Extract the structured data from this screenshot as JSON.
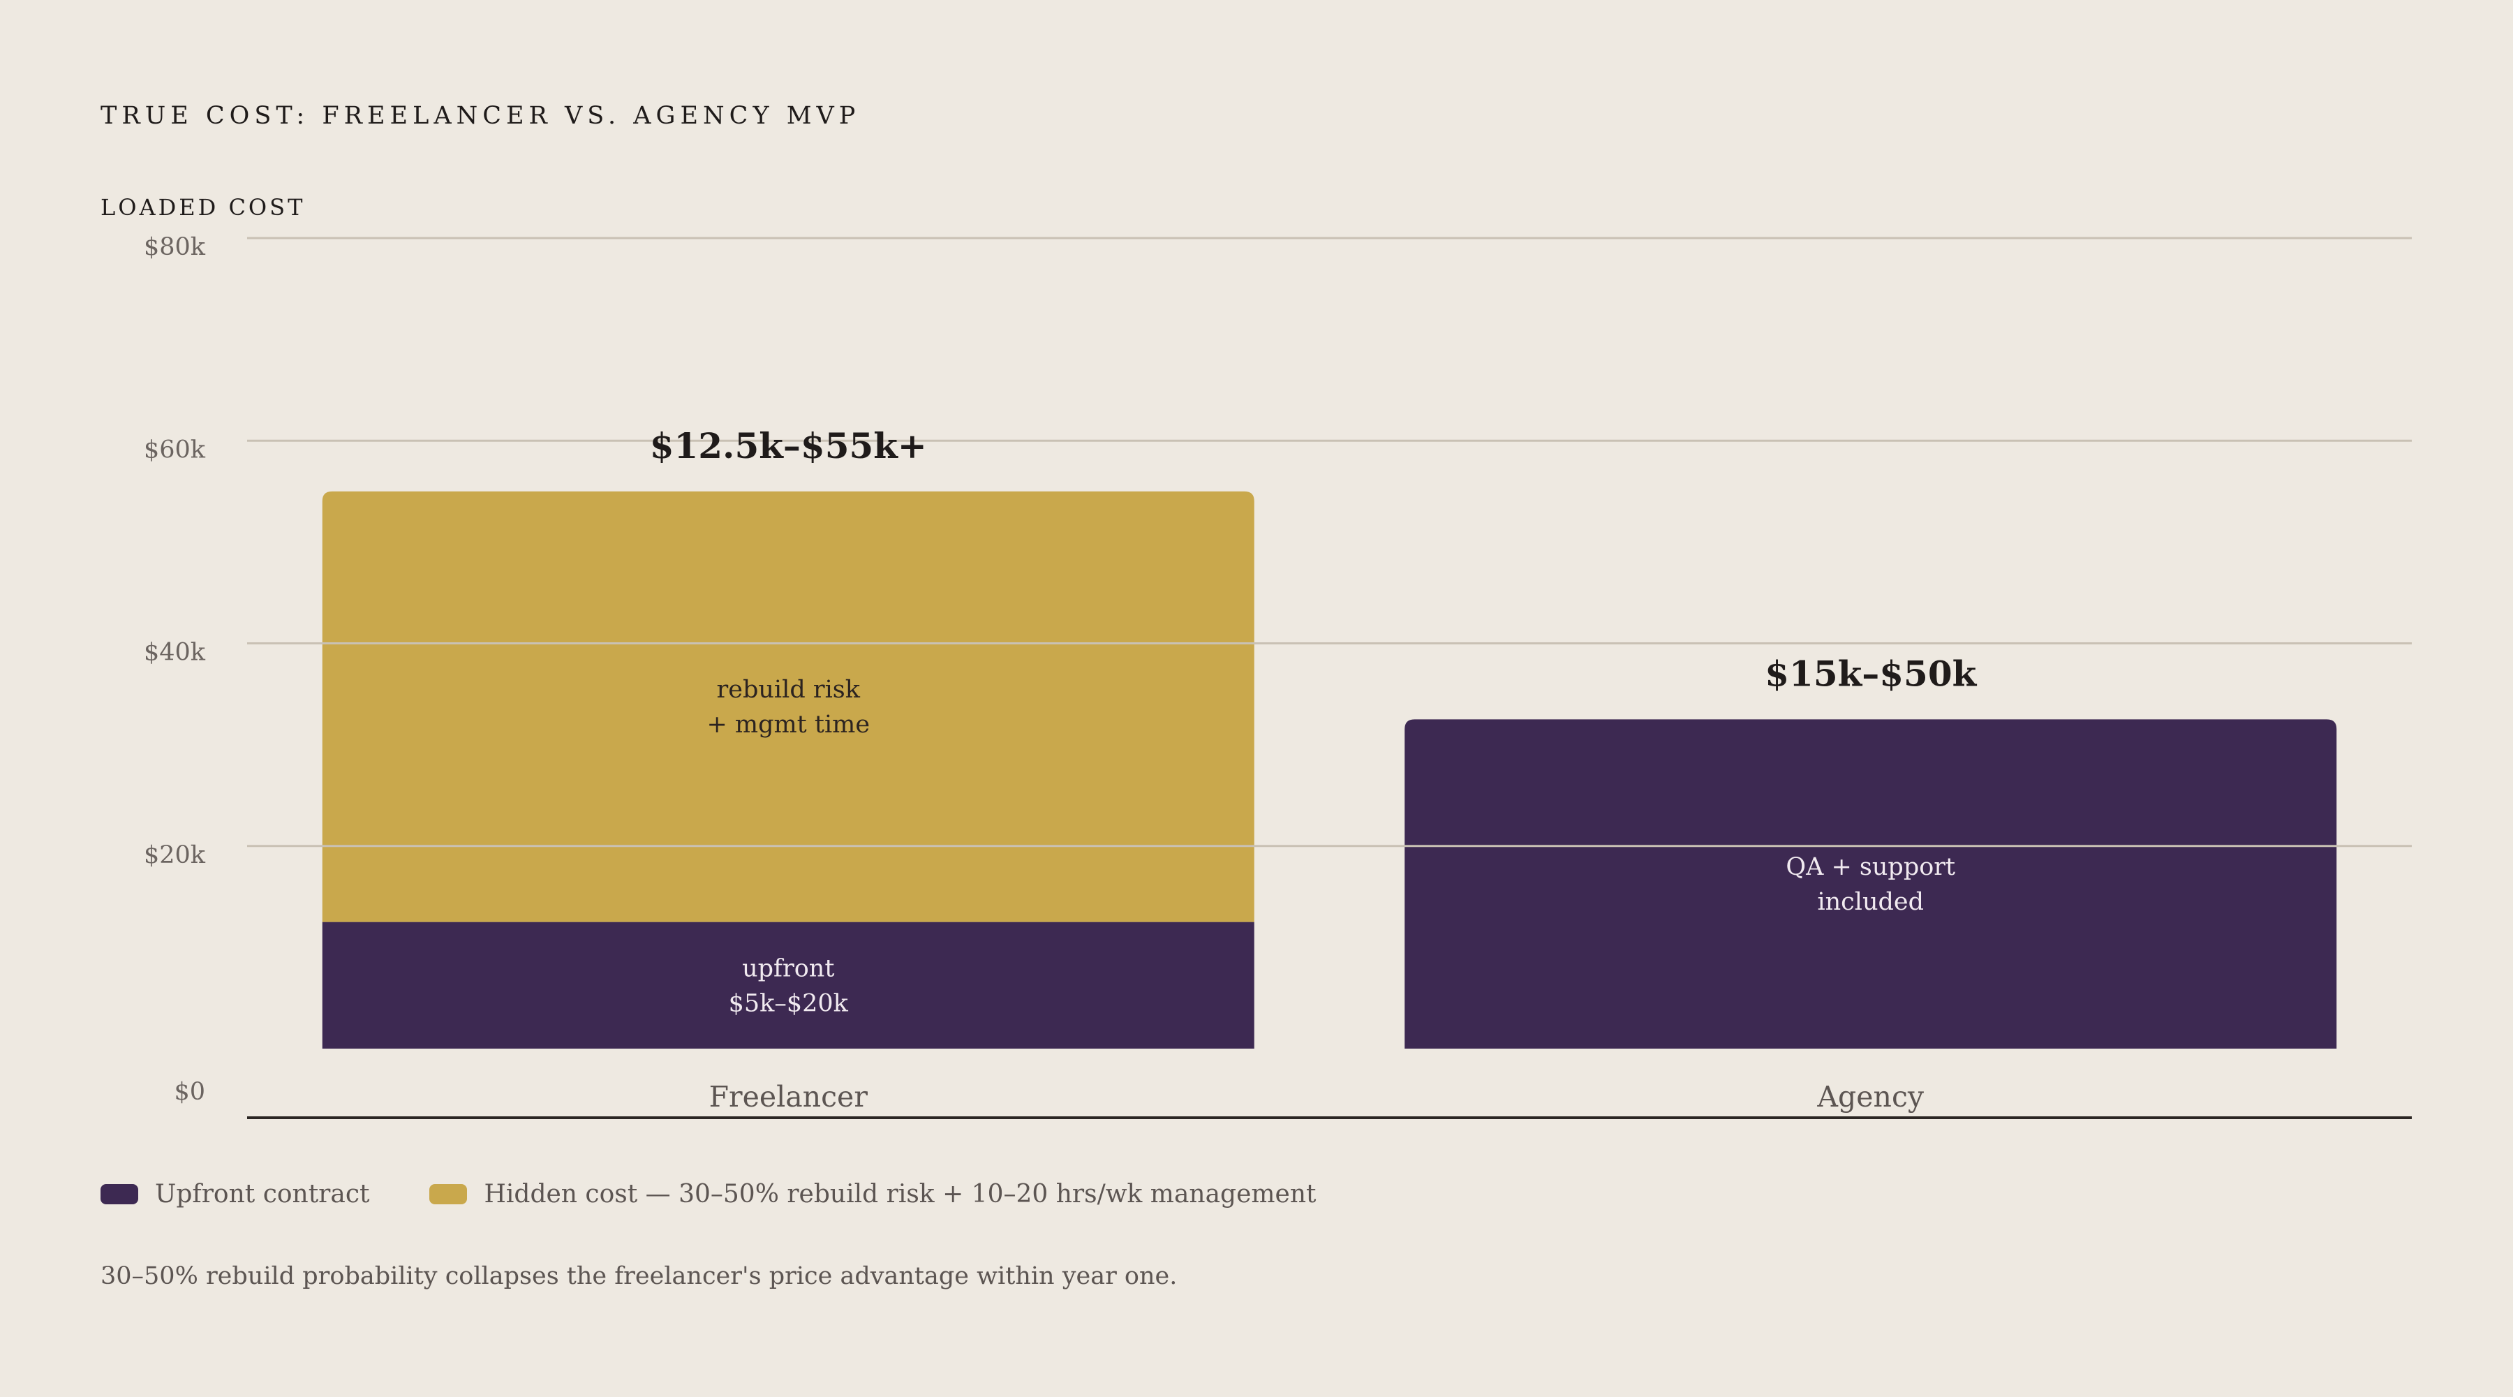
{
  "chart_data": {
    "type": "bar",
    "stacked": true,
    "title": "TRUE COST: FREELANCER VS. AGENCY MVP",
    "ylabel": "LOADED COST",
    "ylim": [
      0,
      80000
    ],
    "yticks": [
      0,
      20000,
      40000,
      60000,
      80000
    ],
    "ytick_labels": [
      "$0",
      "$20k",
      "$40k",
      "$60k",
      "$80k"
    ],
    "categories": [
      "Freelancer",
      "Agency"
    ],
    "grid": true,
    "legend_position": "bottom-left",
    "series": [
      {
        "name": "Upfront contract",
        "color": "#3D2952",
        "values": [
          12500,
          32500
        ],
        "labels": [
          [
            "upfront",
            "$5k–$20k"
          ],
          [
            "QA + support",
            "included"
          ]
        ]
      },
      {
        "name": "Hidden cost — 30–50% rebuild risk + 10–20 hrs/wk management",
        "color": "#C9A84C",
        "values": [
          42500,
          0
        ],
        "labels": [
          [
            "rebuild risk",
            "+ mgmt time"
          ],
          []
        ]
      }
    ],
    "totals_labels": [
      "$12.5k–$55k+",
      "$15k–$50k"
    ],
    "note": "30–50% rebuild probability collapses the freelancer's price advantage within year one."
  }
}
